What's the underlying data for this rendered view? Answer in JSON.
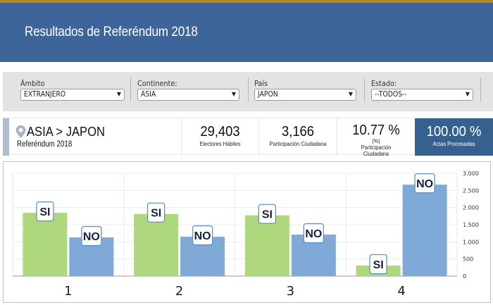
{
  "header": {
    "title": "Resultados de Referéndum 2018"
  },
  "filters": [
    {
      "label": "Ámbito",
      "value": "EXTRANJERO"
    },
    {
      "label": "Continente:",
      "value": "ASIA"
    },
    {
      "label": "País",
      "value": "JAPON"
    },
    {
      "label": "Estado:",
      "value": "--TODOS--"
    }
  ],
  "summary": {
    "location": "ASIA > JAPON",
    "subtitle": "Referéndum 2018",
    "stats": [
      {
        "value": "29,403",
        "caption": "Electores Hábiles"
      },
      {
        "value": "3,166",
        "caption": "Participación Ciudadana"
      },
      {
        "value": "10.77 %",
        "caption": "(%) Participación Ciudadana"
      },
      {
        "value": "100.00 %",
        "caption": "Actas Procesadas"
      }
    ]
  },
  "colors": {
    "header": "#3d6599",
    "topbar": "#b08a2a",
    "si": "#aed77e",
    "no": "#7fa9d6",
    "actas_bg": "#36618f"
  },
  "chart_data": {
    "type": "bar",
    "title": "",
    "xlabel": "",
    "ylabel": "",
    "categories": [
      "1",
      "2",
      "3",
      "4"
    ],
    "series": [
      {
        "name": "SI",
        "values": [
          1847,
          1814,
          1773,
          308
        ]
      },
      {
        "name": "NO",
        "values": [
          1129,
          1149,
          1211,
          2668
        ]
      }
    ],
    "ylim": [
      0,
      3000
    ],
    "yticks": [
      "0",
      "500",
      "1.000",
      "1.500",
      "2.000",
      "2.500",
      "3.000"
    ],
    "ytick_values": [
      0,
      500,
      1000,
      1500,
      2000,
      2500,
      3000
    ],
    "y_axis_side": "right",
    "grid": true,
    "legend": "none",
    "data_labels": "series-name"
  }
}
